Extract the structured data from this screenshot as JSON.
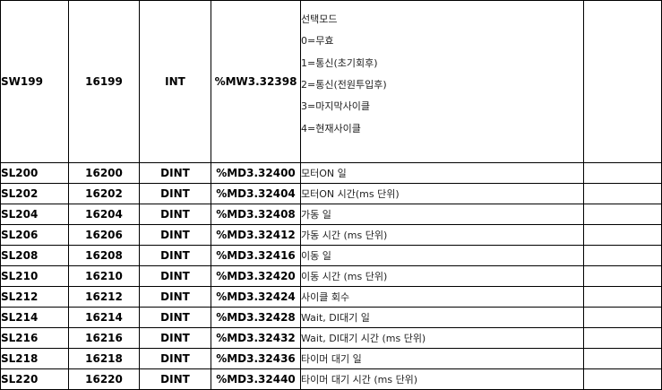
{
  "rows": [
    {
      "name": "SW199",
      "number": "16199",
      "type": "INT",
      "address": "%MW3.32398",
      "description_lines": [
        "선택모드",
        "0=무효",
        "1=통신(초기회후)",
        "2=통신(전원투입후)",
        "3=마지막사이클",
        "4=현재사이클"
      ]
    },
    {
      "name": "SL200",
      "number": "16200",
      "type": "DINT",
      "address": "%MD3.32400",
      "description": "모터ON 일"
    },
    {
      "name": "SL202",
      "number": "16202",
      "type": "DINT",
      "address": "%MD3.32404",
      "description": "모터ON 시간(ms 단위)"
    },
    {
      "name": "SL204",
      "number": "16204",
      "type": "DINT",
      "address": "%MD3.32408",
      "description": "가동 일"
    },
    {
      "name": "SL206",
      "number": "16206",
      "type": "DINT",
      "address": "%MD3.32412",
      "description": "가동 시간 (ms 단위)"
    },
    {
      "name": "SL208",
      "number": "16208",
      "type": "DINT",
      "address": "%MD3.32416",
      "description": "이동 일"
    },
    {
      "name": "SL210",
      "number": "16210",
      "type": "DINT",
      "address": "%MD3.32420",
      "description": "이동 시간 (ms 단위)"
    },
    {
      "name": "SL212",
      "number": "16212",
      "type": "DINT",
      "address": "%MD3.32424",
      "description": "사이클 회수"
    },
    {
      "name": "SL214",
      "number": "16214",
      "type": "DINT",
      "address": "%MD3.32428",
      "description": "Wait, DI대기 일"
    },
    {
      "name": "SL216",
      "number": "16216",
      "type": "DINT",
      "address": "%MD3.32432",
      "description": "Wait, DI대기 시간 (ms 단위)"
    },
    {
      "name": "SL218",
      "number": "16218",
      "type": "DINT",
      "address": "%MD3.32436",
      "description": "타이머 대기 일"
    },
    {
      "name": "SL220",
      "number": "16220",
      "type": "DINT",
      "address": "%MD3.32440",
      "description": "타이머 대기 시간 (ms 단위)"
    }
  ]
}
